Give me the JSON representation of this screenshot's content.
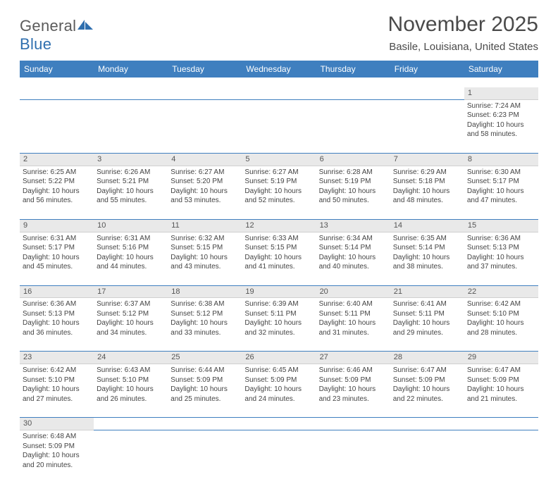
{
  "brand": {
    "name1": "General",
    "name2": "Blue"
  },
  "title": "November 2025",
  "location": "Basile, Louisiana, United States",
  "colors": {
    "header_bg": "#3f7fbf",
    "header_text": "#ffffff",
    "daynum_bg": "#e9e9e9",
    "cell_border": "#3f7fbf",
    "text": "#444444",
    "brand_gray": "#5b5b5b",
    "brand_blue": "#2f6faf"
  },
  "weekdays": [
    "Sunday",
    "Monday",
    "Tuesday",
    "Wednesday",
    "Thursday",
    "Friday",
    "Saturday"
  ],
  "weeks": [
    {
      "nums": [
        "",
        "",
        "",
        "",
        "",
        "",
        "1"
      ],
      "details": [
        "",
        "",
        "",
        "",
        "",
        "",
        "Sunrise: 7:24 AM\nSunset: 6:23 PM\nDaylight: 10 hours and 58 minutes."
      ]
    },
    {
      "nums": [
        "2",
        "3",
        "4",
        "5",
        "6",
        "7",
        "8"
      ],
      "details": [
        "Sunrise: 6:25 AM\nSunset: 5:22 PM\nDaylight: 10 hours and 56 minutes.",
        "Sunrise: 6:26 AM\nSunset: 5:21 PM\nDaylight: 10 hours and 55 minutes.",
        "Sunrise: 6:27 AM\nSunset: 5:20 PM\nDaylight: 10 hours and 53 minutes.",
        "Sunrise: 6:27 AM\nSunset: 5:19 PM\nDaylight: 10 hours and 52 minutes.",
        "Sunrise: 6:28 AM\nSunset: 5:19 PM\nDaylight: 10 hours and 50 minutes.",
        "Sunrise: 6:29 AM\nSunset: 5:18 PM\nDaylight: 10 hours and 48 minutes.",
        "Sunrise: 6:30 AM\nSunset: 5:17 PM\nDaylight: 10 hours and 47 minutes."
      ]
    },
    {
      "nums": [
        "9",
        "10",
        "11",
        "12",
        "13",
        "14",
        "15"
      ],
      "details": [
        "Sunrise: 6:31 AM\nSunset: 5:17 PM\nDaylight: 10 hours and 45 minutes.",
        "Sunrise: 6:31 AM\nSunset: 5:16 PM\nDaylight: 10 hours and 44 minutes.",
        "Sunrise: 6:32 AM\nSunset: 5:15 PM\nDaylight: 10 hours and 43 minutes.",
        "Sunrise: 6:33 AM\nSunset: 5:15 PM\nDaylight: 10 hours and 41 minutes.",
        "Sunrise: 6:34 AM\nSunset: 5:14 PM\nDaylight: 10 hours and 40 minutes.",
        "Sunrise: 6:35 AM\nSunset: 5:14 PM\nDaylight: 10 hours and 38 minutes.",
        "Sunrise: 6:36 AM\nSunset: 5:13 PM\nDaylight: 10 hours and 37 minutes."
      ]
    },
    {
      "nums": [
        "16",
        "17",
        "18",
        "19",
        "20",
        "21",
        "22"
      ],
      "details": [
        "Sunrise: 6:36 AM\nSunset: 5:13 PM\nDaylight: 10 hours and 36 minutes.",
        "Sunrise: 6:37 AM\nSunset: 5:12 PM\nDaylight: 10 hours and 34 minutes.",
        "Sunrise: 6:38 AM\nSunset: 5:12 PM\nDaylight: 10 hours and 33 minutes.",
        "Sunrise: 6:39 AM\nSunset: 5:11 PM\nDaylight: 10 hours and 32 minutes.",
        "Sunrise: 6:40 AM\nSunset: 5:11 PM\nDaylight: 10 hours and 31 minutes.",
        "Sunrise: 6:41 AM\nSunset: 5:11 PM\nDaylight: 10 hours and 29 minutes.",
        "Sunrise: 6:42 AM\nSunset: 5:10 PM\nDaylight: 10 hours and 28 minutes."
      ]
    },
    {
      "nums": [
        "23",
        "24",
        "25",
        "26",
        "27",
        "28",
        "29"
      ],
      "details": [
        "Sunrise: 6:42 AM\nSunset: 5:10 PM\nDaylight: 10 hours and 27 minutes.",
        "Sunrise: 6:43 AM\nSunset: 5:10 PM\nDaylight: 10 hours and 26 minutes.",
        "Sunrise: 6:44 AM\nSunset: 5:09 PM\nDaylight: 10 hours and 25 minutes.",
        "Sunrise: 6:45 AM\nSunset: 5:09 PM\nDaylight: 10 hours and 24 minutes.",
        "Sunrise: 6:46 AM\nSunset: 5:09 PM\nDaylight: 10 hours and 23 minutes.",
        "Sunrise: 6:47 AM\nSunset: 5:09 PM\nDaylight: 10 hours and 22 minutes.",
        "Sunrise: 6:47 AM\nSunset: 5:09 PM\nDaylight: 10 hours and 21 minutes."
      ]
    },
    {
      "nums": [
        "30",
        "",
        "",
        "",
        "",
        "",
        ""
      ],
      "details": [
        "Sunrise: 6:48 AM\nSunset: 5:09 PM\nDaylight: 10 hours and 20 minutes.",
        "",
        "",
        "",
        "",
        "",
        ""
      ]
    }
  ]
}
